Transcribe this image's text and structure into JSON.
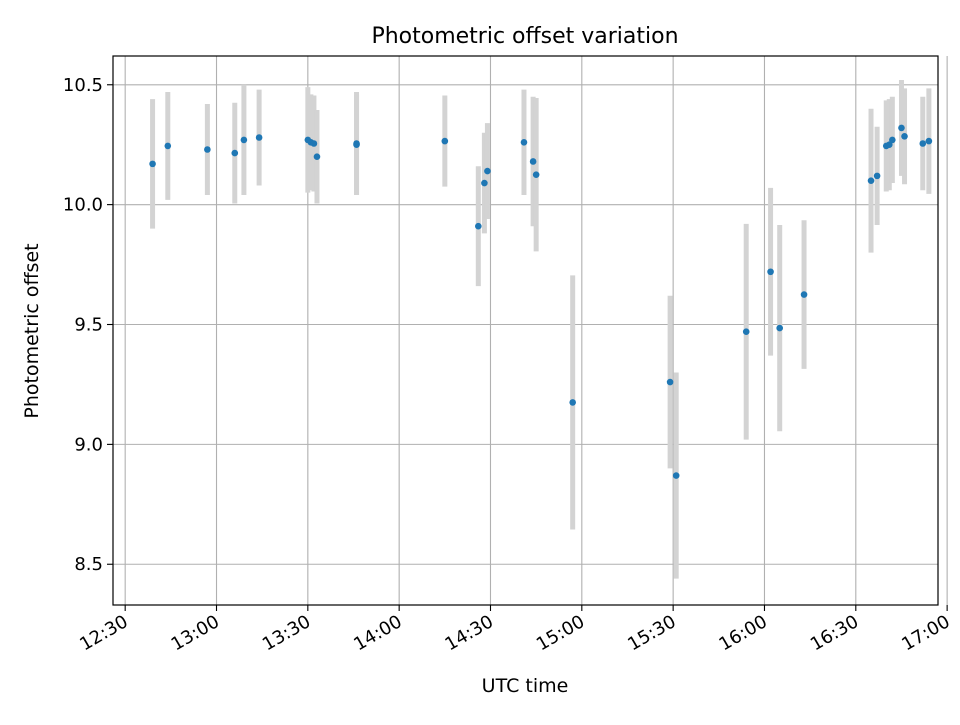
{
  "chart_data": {
    "type": "scatter",
    "title": "Photometric offset variation",
    "xlabel": "UTC time",
    "ylabel": "Photometric offset",
    "grid": true,
    "xlim": [
      "12:26",
      "16:57"
    ],
    "ylim": [
      8.33,
      10.62
    ],
    "x_ticks": [
      "12:30",
      "13:00",
      "13:30",
      "14:00",
      "14:30",
      "15:00",
      "15:30",
      "16:00",
      "16:30",
      "17:00"
    ],
    "y_ticks": [
      "8.5",
      "9.0",
      "9.5",
      "10.0",
      "10.5"
    ],
    "colors": {
      "points": "#1f77b4",
      "error_bars": "#d3d3d3",
      "grid": "#b0b0b0"
    },
    "points": [
      {
        "x": "12:39",
        "y": 10.17,
        "err": 0.27
      },
      {
        "x": "12:44",
        "y": 10.245,
        "err": 0.225
      },
      {
        "x": "12:57",
        "y": 10.23,
        "err": 0.19
      },
      {
        "x": "13:06",
        "y": 10.215,
        "err": 0.21
      },
      {
        "x": "13:09",
        "y": 10.27,
        "err": 0.23
      },
      {
        "x": "13:14",
        "y": 10.28,
        "err": 0.2
      },
      {
        "x": "13:30",
        "y": 10.27,
        "err": 0.22
      },
      {
        "x": "13:31",
        "y": 10.26,
        "err": 0.2
      },
      {
        "x": "13:32",
        "y": 10.255,
        "err": 0.2
      },
      {
        "x": "13:33",
        "y": 10.2,
        "err": 0.195
      },
      {
        "x": "13:46",
        "y": 10.25,
        "err": 0.21
      },
      {
        "x": "13:46",
        "y": 10.255,
        "err": 0.215
      },
      {
        "x": "14:15",
        "y": 10.265,
        "err": 0.19
      },
      {
        "x": "14:26",
        "y": 9.91,
        "err": 0.25
      },
      {
        "x": "14:28",
        "y": 10.09,
        "err": 0.21
      },
      {
        "x": "14:29",
        "y": 10.14,
        "err": 0.2
      },
      {
        "x": "14:41",
        "y": 10.26,
        "err": 0.22
      },
      {
        "x": "14:44",
        "y": 10.18,
        "err": 0.27
      },
      {
        "x": "14:45",
        "y": 10.125,
        "err": 0.32
      },
      {
        "x": "14:57",
        "y": 9.175,
        "err": 0.53
      },
      {
        "x": "15:29",
        "y": 9.26,
        "err": 0.36
      },
      {
        "x": "15:31",
        "y": 8.87,
        "err": 0.43
      },
      {
        "x": "15:54",
        "y": 9.47,
        "err": 0.45
      },
      {
        "x": "16:02",
        "y": 9.72,
        "err": 0.35
      },
      {
        "x": "16:05",
        "y": 9.485,
        "err": 0.43
      },
      {
        "x": "16:13",
        "y": 9.625,
        "err": 0.31
      },
      {
        "x": "16:35",
        "y": 10.1,
        "err": 0.3
      },
      {
        "x": "16:37",
        "y": 10.12,
        "err": 0.205
      },
      {
        "x": "16:40",
        "y": 10.245,
        "err": 0.19
      },
      {
        "x": "16:41",
        "y": 10.25,
        "err": 0.19
      },
      {
        "x": "16:42",
        "y": 10.27,
        "err": 0.18
      },
      {
        "x": "16:45",
        "y": 10.32,
        "err": 0.2
      },
      {
        "x": "16:46",
        "y": 10.285,
        "err": 0.2
      },
      {
        "x": "16:52",
        "y": 10.255,
        "err": 0.195
      },
      {
        "x": "16:54",
        "y": 10.265,
        "err": 0.22
      }
    ]
  }
}
